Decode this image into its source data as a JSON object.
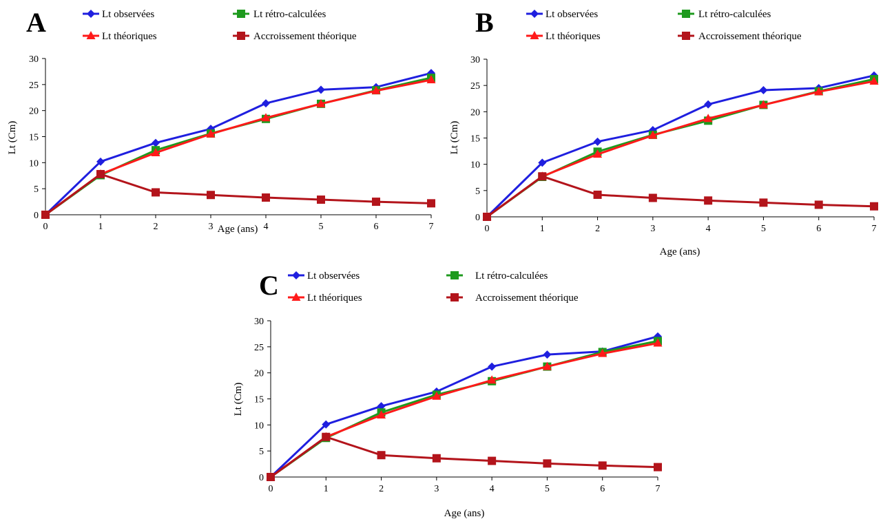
{
  "figure": {
    "series_styles": [
      {
        "color": "#1f1fdf",
        "marker": "diamond"
      },
      {
        "color": "#1e9a1e",
        "marker": "square"
      },
      {
        "color": "#ff1a1a",
        "marker": "triangle"
      },
      {
        "color": "#b3141b",
        "marker": "square"
      }
    ]
  },
  "chart_data": [
    {
      "type": "line",
      "panel": "A",
      "xlabel": "Age (ans)",
      "ylabel": "Lt (Cm)",
      "x": [
        0,
        1,
        2,
        3,
        4,
        5,
        6,
        7
      ],
      "xlim": [
        0,
        7
      ],
      "ylim": [
        0,
        30
      ],
      "yticks": [
        0,
        5,
        10,
        15,
        20,
        25,
        30
      ],
      "grid": false,
      "legend_position": "top",
      "series": [
        {
          "name": "Lt observées",
          "values": [
            0,
            10.2,
            13.8,
            16.5,
            21.4,
            24.0,
            24.5,
            27.2
          ]
        },
        {
          "name": "Lt rétro-calculées",
          "values": [
            0,
            7.6,
            12.4,
            15.6,
            18.4,
            21.3,
            23.9,
            26.3
          ]
        },
        {
          "name": "Lt théoriques",
          "values": [
            0,
            7.8,
            11.9,
            15.5,
            18.6,
            21.3,
            23.8,
            25.9
          ]
        },
        {
          "name": "Accroissement théorique",
          "values": [
            0,
            7.8,
            4.3,
            3.8,
            3.3,
            2.9,
            2.5,
            2.2
          ]
        }
      ]
    },
    {
      "type": "line",
      "panel": "B",
      "xlabel": "Age (ans)",
      "ylabel": "Lt (Cm)",
      "x": [
        0,
        1,
        2,
        3,
        4,
        5,
        6,
        7
      ],
      "xlim": [
        0,
        7
      ],
      "ylim": [
        0,
        30
      ],
      "yticks": [
        0,
        5,
        10,
        15,
        20,
        25,
        30
      ],
      "grid": false,
      "legend_position": "top",
      "series": [
        {
          "name": "Lt observées",
          "values": [
            0,
            10.3,
            14.3,
            16.5,
            21.4,
            24.1,
            24.5,
            26.9
          ]
        },
        {
          "name": "Lt rétro-calculées",
          "values": [
            0,
            7.6,
            12.4,
            15.6,
            18.3,
            21.3,
            23.9,
            26.2
          ]
        },
        {
          "name": "Lt théoriques",
          "values": [
            0,
            7.7,
            11.9,
            15.5,
            18.7,
            21.3,
            23.8,
            25.8
          ]
        },
        {
          "name": "Accroissement théorique",
          "values": [
            0,
            7.7,
            4.2,
            3.6,
            3.1,
            2.7,
            2.3,
            2.0
          ]
        }
      ]
    },
    {
      "type": "line",
      "panel": "C",
      "xlabel": "Age (ans)",
      "ylabel": "Lt (Cm)",
      "x": [
        0,
        1,
        2,
        3,
        4,
        5,
        6,
        7
      ],
      "xlim": [
        0,
        7
      ],
      "ylim": [
        0,
        30
      ],
      "yticks": [
        0,
        5,
        10,
        15,
        20,
        25,
        30
      ],
      "grid": false,
      "legend_position": "top",
      "series": [
        {
          "name": "Lt observées",
          "values": [
            0,
            10.1,
            13.6,
            16.4,
            21.2,
            23.5,
            24.1,
            27.0
          ]
        },
        {
          "name": "Lt rétro-calculées",
          "values": [
            0,
            7.5,
            12.4,
            15.8,
            18.4,
            21.2,
            24.0,
            26.1
          ]
        },
        {
          "name": "Lt théoriques",
          "values": [
            0,
            7.7,
            11.9,
            15.5,
            18.6,
            21.2,
            23.7,
            25.7
          ]
        },
        {
          "name": "Accroissement théorique",
          "values": [
            0,
            7.7,
            4.2,
            3.6,
            3.1,
            2.6,
            2.2,
            1.9
          ]
        }
      ]
    }
  ]
}
